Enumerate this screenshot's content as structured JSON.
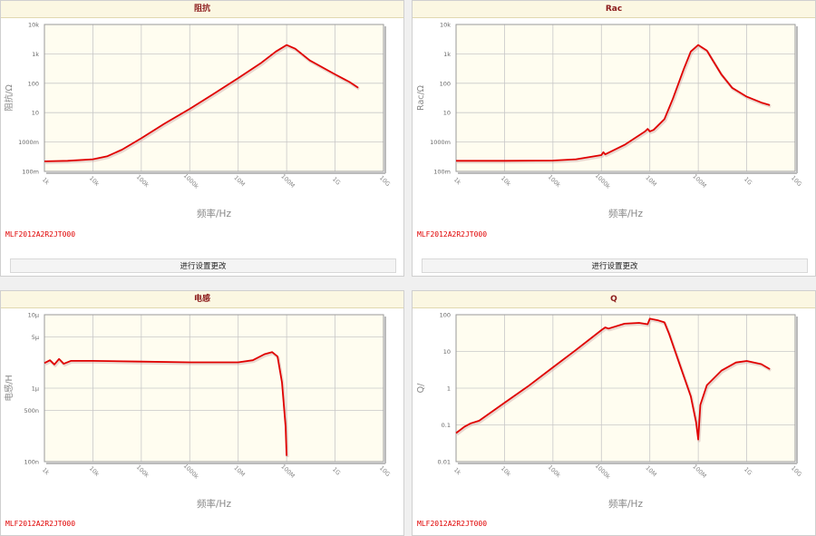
{
  "panels": [
    {
      "title": "阻抗",
      "part_number": "MLF2012A2R2JT000",
      "button_label": "进行设置更改"
    },
    {
      "title": "Rac",
      "part_number": "MLF2012A2R2JT000",
      "button_label": "进行设置更改"
    },
    {
      "title": "电感",
      "part_number": "MLF2012A2R2JT000"
    },
    {
      "title": "Q",
      "part_number": "MLF2012A2R2JT000"
    }
  ],
  "colors": {
    "series": "#e00000",
    "plot_bg": "#fffdf0",
    "grid": "#c8c8c8",
    "axis": "#999999",
    "title": "#8b1a1a"
  },
  "chart_data": [
    {
      "type": "line",
      "title": "阻抗",
      "xlabel": "频率/Hz",
      "ylabel": "阻抗/Ω",
      "x_scale": "log",
      "y_scale": "log",
      "xlim": [
        1000,
        10000000000
      ],
      "ylim": [
        0.1,
        10000
      ],
      "x_ticks": [
        {
          "v": 1000,
          "label": "1k"
        },
        {
          "v": 10000,
          "label": "10k"
        },
        {
          "v": 100000,
          "label": "100k"
        },
        {
          "v": 1000000,
          "label": "1000k"
        },
        {
          "v": 10000000,
          "label": "10M"
        },
        {
          "v": 100000000,
          "label": "100M"
        },
        {
          "v": 1000000000,
          "label": "1G"
        },
        {
          "v": 10000000000,
          "label": "10G"
        }
      ],
      "y_ticks": [
        {
          "v": 0.1,
          "label": "100m"
        },
        {
          "v": 1,
          "label": "1000m"
        },
        {
          "v": 10,
          "label": "10"
        },
        {
          "v": 100,
          "label": "100"
        },
        {
          "v": 1000,
          "label": "1k"
        },
        {
          "v": 10000,
          "label": "10k"
        }
      ],
      "series": [
        {
          "points": [
            [
              1000,
              0.22
            ],
            [
              3000,
              0.23
            ],
            [
              10000,
              0.26
            ],
            [
              20000,
              0.33
            ],
            [
              40000,
              0.55
            ],
            [
              100000,
              1.35
            ],
            [
              300000,
              4.2
            ],
            [
              1000000,
              13.5
            ],
            [
              3000000,
              42
            ],
            [
              10000000,
              150
            ],
            [
              30000000,
              500
            ],
            [
              60000000,
              1200
            ],
            [
              100000000,
              2000
            ],
            [
              150000000,
              1500
            ],
            [
              300000000,
              600
            ],
            [
              1000000000,
              200
            ],
            [
              2000000000,
              110
            ],
            [
              3000000000,
              70
            ]
          ]
        }
      ]
    },
    {
      "type": "line",
      "title": "Rac",
      "xlabel": "频率/Hz",
      "ylabel": "Rac/Ω",
      "x_scale": "log",
      "y_scale": "log",
      "xlim": [
        1000,
        10000000000
      ],
      "ylim": [
        0.1,
        10000
      ],
      "x_ticks": [
        {
          "v": 1000,
          "label": "1k"
        },
        {
          "v": 10000,
          "label": "10k"
        },
        {
          "v": 100000,
          "label": "100k"
        },
        {
          "v": 1000000,
          "label": "1000k"
        },
        {
          "v": 10000000,
          "label": "10M"
        },
        {
          "v": 100000000,
          "label": "100M"
        },
        {
          "v": 1000000000,
          "label": "1G"
        },
        {
          "v": 10000000000,
          "label": "10G"
        }
      ],
      "y_ticks": [
        {
          "v": 0.1,
          "label": "100m"
        },
        {
          "v": 1,
          "label": "1000m"
        },
        {
          "v": 10,
          "label": "10"
        },
        {
          "v": 100,
          "label": "100"
        },
        {
          "v": 1000,
          "label": "1k"
        },
        {
          "v": 10000,
          "label": "10k"
        }
      ],
      "series": [
        {
          "points": [
            [
              1000,
              0.23
            ],
            [
              10000,
              0.23
            ],
            [
              100000,
              0.235
            ],
            [
              300000,
              0.26
            ],
            [
              1000000,
              0.36
            ],
            [
              1100000,
              0.45
            ],
            [
              1200000,
              0.38
            ],
            [
              3000000,
              0.8
            ],
            [
              8000000,
              2.3
            ],
            [
              9000000,
              2.8
            ],
            [
              10000000,
              2.3
            ],
            [
              12000000,
              2.6
            ],
            [
              20000000,
              6
            ],
            [
              30000000,
              30
            ],
            [
              50000000,
              300
            ],
            [
              70000000,
              1200
            ],
            [
              100000000,
              2000
            ],
            [
              150000000,
              1300
            ],
            [
              200000000,
              600
            ],
            [
              300000000,
              200
            ],
            [
              500000000,
              70
            ],
            [
              1000000000,
              35
            ],
            [
              2000000000,
              22
            ],
            [
              3000000000,
              18
            ]
          ]
        }
      ]
    },
    {
      "type": "line",
      "title": "电感",
      "xlabel": "频率/Hz",
      "ylabel": "电感/H",
      "x_scale": "log",
      "y_scale": "log",
      "xlim": [
        1000,
        10000000000
      ],
      "ylim": [
        1e-07,
        1e-05
      ],
      "x_ticks": [
        {
          "v": 1000,
          "label": "1k"
        },
        {
          "v": 10000,
          "label": "10k"
        },
        {
          "v": 100000,
          "label": "100k"
        },
        {
          "v": 1000000,
          "label": "1000k"
        },
        {
          "v": 10000000,
          "label": "10M"
        },
        {
          "v": 100000000,
          "label": "100M"
        },
        {
          "v": 1000000000,
          "label": "1G"
        },
        {
          "v": 10000000000,
          "label": "10G"
        }
      ],
      "y_ticks": [
        {
          "v": 1e-07,
          "label": "100n"
        },
        {
          "v": 5e-07,
          "label": "500n"
        },
        {
          "v": 1e-06,
          "label": "1μ"
        },
        {
          "v": 5e-06,
          "label": "5μ"
        },
        {
          "v": 1e-05,
          "label": "10μ"
        }
      ],
      "series": [
        {
          "points": [
            [
              1000,
              2.2e-06
            ],
            [
              1300,
              2.4e-06
            ],
            [
              1600,
              2.1e-06
            ],
            [
              2000,
              2.5e-06
            ],
            [
              2500,
              2.15e-06
            ],
            [
              3500,
              2.35e-06
            ],
            [
              10000,
              2.35e-06
            ],
            [
              100000,
              2.3e-06
            ],
            [
              1000000,
              2.25e-06
            ],
            [
              10000000,
              2.25e-06
            ],
            [
              20000000,
              2.4e-06
            ],
            [
              35000000,
              2.9e-06
            ],
            [
              50000000,
              3.1e-06
            ],
            [
              65000000,
              2.7e-06
            ],
            [
              80000000,
              1.2e-06
            ],
            [
              95000000,
              3e-07
            ],
            [
              100000000,
              1.2e-07
            ]
          ]
        }
      ]
    },
    {
      "type": "line",
      "title": "Q",
      "xlabel": "频率/Hz",
      "ylabel": "Q/",
      "x_scale": "log",
      "y_scale": "log",
      "xlim": [
        1000,
        10000000000
      ],
      "ylim": [
        0.01,
        100
      ],
      "x_ticks": [
        {
          "v": 1000,
          "label": "1k"
        },
        {
          "v": 10000,
          "label": "10k"
        },
        {
          "v": 100000,
          "label": "100k"
        },
        {
          "v": 1000000,
          "label": "1000k"
        },
        {
          "v": 10000000,
          "label": "10M"
        },
        {
          "v": 100000000,
          "label": "100M"
        },
        {
          "v": 1000000000,
          "label": "1G"
        },
        {
          "v": 10000000000,
          "label": "10G"
        }
      ],
      "y_ticks": [
        {
          "v": 0.01,
          "label": "0.01"
        },
        {
          "v": 0.1,
          "label": "0.1"
        },
        {
          "v": 1,
          "label": "1"
        },
        {
          "v": 10,
          "label": "10"
        },
        {
          "v": 100,
          "label": "100"
        }
      ],
      "series": [
        {
          "points": [
            [
              1000,
              0.06
            ],
            [
              1500,
              0.09
            ],
            [
              2000,
              0.11
            ],
            [
              3000,
              0.13
            ],
            [
              10000,
              0.4
            ],
            [
              30000,
              1.1
            ],
            [
              100000,
              3.7
            ],
            [
              300000,
              11
            ],
            [
              1000000,
              38
            ],
            [
              1200000,
              45
            ],
            [
              1400000,
              42
            ],
            [
              3000000,
              57
            ],
            [
              6000000,
              60
            ],
            [
              9000000,
              55
            ],
            [
              10000000,
              78
            ],
            [
              15000000,
              70
            ],
            [
              20000000,
              62
            ],
            [
              25000000,
              30
            ],
            [
              40000000,
              5
            ],
            [
              70000000,
              0.6
            ],
            [
              90000000,
              0.12
            ],
            [
              100000000,
              0.04
            ],
            [
              110000000,
              0.35
            ],
            [
              150000000,
              1.2
            ],
            [
              300000000,
              3
            ],
            [
              600000000,
              5
            ],
            [
              1000000000,
              5.5
            ],
            [
              2000000000,
              4.5
            ],
            [
              3000000000,
              3.3
            ]
          ]
        }
      ]
    }
  ]
}
